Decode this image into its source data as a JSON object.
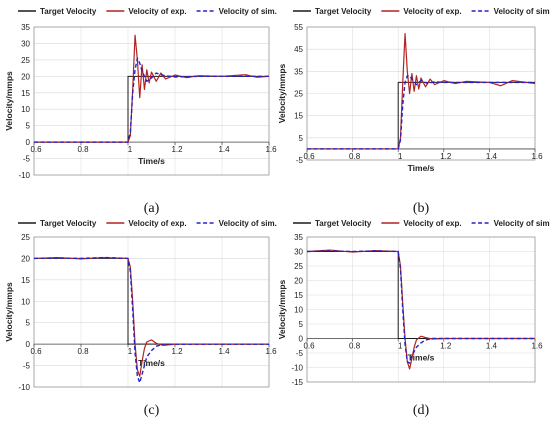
{
  "figure": {
    "legend": [
      "Target Velocity",
      "Velocity of exp.",
      "Velocity of sim."
    ],
    "colors": {
      "target": "#1a1a1a",
      "exp": "#b22222",
      "sim": "#2323c8",
      "grid": "#d9d9d9",
      "axis": "#8c8c8c"
    }
  },
  "chart_data": [
    {
      "type": "line",
      "caption": "(a)",
      "xlabel": "Time/s",
      "ylabel": "Velocity/mmps",
      "xlim": [
        0.6,
        1.6
      ],
      "ylim": [
        -10,
        35
      ],
      "xticks": [
        "0.6",
        "0.8",
        "1",
        "1.2",
        "1.4",
        "1.6"
      ],
      "yticks": [
        "-10",
        "-5",
        "0",
        "5",
        "10",
        "15",
        "20",
        "25",
        "30",
        "35"
      ],
      "grid": true,
      "legend_position": "top",
      "series": [
        {
          "name": "Target Velocity",
          "x": [
            0.6,
            1.0,
            1.0,
            1.6
          ],
          "y": [
            0,
            0,
            20,
            20
          ]
        },
        {
          "name": "Velocity of exp.",
          "x": [
            0.6,
            1.0,
            1.01,
            1.02,
            1.03,
            1.04,
            1.05,
            1.06,
            1.07,
            1.08,
            1.09,
            1.1,
            1.12,
            1.14,
            1.16,
            1.2,
            1.25,
            1.3,
            1.4,
            1.5,
            1.55,
            1.6
          ],
          "y": [
            0,
            0,
            2,
            16,
            32.5,
            25,
            13.5,
            23.5,
            16,
            22,
            18,
            21.3,
            18.5,
            21,
            19.2,
            20.4,
            19.6,
            20.2,
            20,
            20.5,
            19.7,
            20
          ]
        },
        {
          "name": "Velocity of sim.",
          "x": [
            0.6,
            1.0,
            1.01,
            1.02,
            1.03,
            1.04,
            1.05,
            1.06,
            1.08,
            1.1,
            1.12,
            1.15,
            1.2,
            1.3,
            1.6
          ],
          "y": [
            0,
            0,
            3,
            15,
            22,
            25.5,
            24,
            21.5,
            18.5,
            19.5,
            21,
            20.3,
            19.8,
            20,
            20
          ]
        }
      ]
    },
    {
      "type": "line",
      "caption": "(b)",
      "xlabel": "Time/s",
      "ylabel": "Velocity/mmps",
      "xlim": [
        0.6,
        1.6
      ],
      "ylim": [
        -5,
        55
      ],
      "xticks": [
        "0.6",
        "0.8",
        "1",
        "1.2",
        "1.4",
        "1.6"
      ],
      "yticks": [
        "-5",
        "5",
        "15",
        "25",
        "35",
        "45",
        "55"
      ],
      "grid": true,
      "legend_position": "top",
      "series": [
        {
          "name": "Target Velocity",
          "x": [
            0.6,
            1.0,
            1.0,
            1.6
          ],
          "y": [
            0,
            0,
            30,
            30
          ]
        },
        {
          "name": "Velocity of exp.",
          "x": [
            0.6,
            1.0,
            1.01,
            1.02,
            1.03,
            1.04,
            1.05,
            1.06,
            1.07,
            1.08,
            1.09,
            1.1,
            1.12,
            1.14,
            1.16,
            1.2,
            1.25,
            1.3,
            1.4,
            1.45,
            1.5,
            1.6
          ],
          "y": [
            0,
            0,
            5,
            30,
            52,
            35,
            25,
            34,
            26,
            33,
            27,
            32,
            28,
            31.5,
            29,
            30.8,
            29.5,
            30.5,
            30,
            28.5,
            30.8,
            29.5
          ]
        },
        {
          "name": "Velocity of sim.",
          "x": [
            0.6,
            1.0,
            1.01,
            1.02,
            1.03,
            1.04,
            1.05,
            1.06,
            1.08,
            1.1,
            1.13,
            1.16,
            1.2,
            1.3,
            1.6
          ],
          "y": [
            0,
            0,
            4,
            20,
            30,
            33,
            33,
            31.5,
            29,
            30.8,
            29.5,
            30.3,
            30,
            30,
            30
          ]
        }
      ]
    },
    {
      "type": "line",
      "caption": "(c)",
      "xlabel": "Time/s",
      "ylabel": "Velocity/mmps",
      "xlim": [
        0.6,
        1.6
      ],
      "ylim": [
        -10,
        25
      ],
      "xticks": [
        "0.6",
        "0.8",
        "1",
        "1.2",
        "1.4",
        "1.6"
      ],
      "yticks": [
        "-10",
        "-5",
        "0",
        "5",
        "10",
        "15",
        "20",
        "25"
      ],
      "grid": true,
      "legend_position": "top",
      "series": [
        {
          "name": "Target Velocity",
          "x": [
            0.6,
            1.0,
            1.0,
            1.6
          ],
          "y": [
            20,
            20,
            0,
            0
          ]
        },
        {
          "name": "Velocity of exp.",
          "x": [
            0.6,
            0.7,
            0.8,
            0.9,
            1.0,
            1.01,
            1.02,
            1.03,
            1.04,
            1.05,
            1.06,
            1.07,
            1.08,
            1.1,
            1.12,
            1.15,
            1.2,
            1.3,
            1.6
          ],
          "y": [
            20,
            20.2,
            19.9,
            20.2,
            20,
            18,
            10,
            0,
            -6,
            -7.5,
            -4,
            -1,
            0.5,
            1,
            0.2,
            -0.3,
            0,
            0,
            0
          ]
        },
        {
          "name": "Velocity of sim.",
          "x": [
            0.6,
            0.7,
            0.8,
            0.9,
            1.0,
            1.01,
            1.02,
            1.03,
            1.04,
            1.05,
            1.06,
            1.08,
            1.1,
            1.12,
            1.15,
            1.2,
            1.3,
            1.6
          ],
          "y": [
            20,
            20.1,
            20,
            20.2,
            20,
            17,
            8,
            -2,
            -7.5,
            -9,
            -7,
            -3,
            -1.5,
            -0.5,
            0,
            0,
            0,
            0
          ]
        }
      ]
    },
    {
      "type": "line",
      "caption": "(d)",
      "xlabel": "Time/s",
      "ylabel": "Velocity/mmps",
      "xlim": [
        0.6,
        1.6
      ],
      "ylim": [
        -15,
        35
      ],
      "xticks": [
        "0.6",
        "0.8",
        "1",
        "1.2",
        "1.4",
        "1.6"
      ],
      "yticks": [
        "-15",
        "-10",
        "-5",
        "0",
        "5",
        "10",
        "15",
        "20",
        "25",
        "30",
        "35"
      ],
      "grid": true,
      "legend_position": "top",
      "series": [
        {
          "name": "Target Velocity",
          "x": [
            0.6,
            1.0,
            1.0,
            1.6
          ],
          "y": [
            30,
            30,
            0,
            0
          ]
        },
        {
          "name": "Velocity of exp.",
          "x": [
            0.6,
            0.7,
            0.8,
            0.9,
            1.0,
            1.01,
            1.02,
            1.03,
            1.04,
            1.05,
            1.06,
            1.07,
            1.08,
            1.1,
            1.12,
            1.15,
            1.2,
            1.3,
            1.6
          ],
          "y": [
            30,
            30.5,
            29.8,
            30.3,
            30,
            25,
            12,
            0,
            -8,
            -10.5,
            -7,
            -3,
            -0.5,
            0.8,
            0.3,
            -0.2,
            0,
            0,
            0
          ]
        },
        {
          "name": "Velocity of sim.",
          "x": [
            0.6,
            0.7,
            0.8,
            0.9,
            1.0,
            1.01,
            1.02,
            1.03,
            1.04,
            1.05,
            1.06,
            1.08,
            1.1,
            1.12,
            1.15,
            1.2,
            1.3,
            1.6
          ],
          "y": [
            30,
            30.2,
            30,
            30.2,
            30,
            24,
            10,
            -2,
            -8,
            -8.5,
            -6,
            -3,
            -1.5,
            -0.5,
            0,
            0,
            0,
            0
          ]
        }
      ]
    }
  ]
}
